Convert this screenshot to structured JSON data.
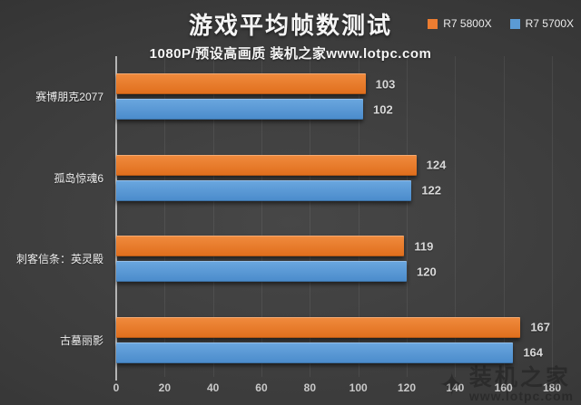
{
  "chart_data": {
    "type": "bar",
    "orientation": "horizontal",
    "title": "游戏平均帧数测试",
    "subtitle": "1080P/预设高画质 装机之家www.lotpc.com",
    "categories": [
      "赛博朋克2077",
      "孤岛惊魂6",
      "刺客信条：英灵殿",
      "古墓丽影"
    ],
    "series": [
      {
        "name": "R7 5800X",
        "color": "#ED7D31",
        "color_light": "#F08B3E",
        "color_dark": "#E06E1C",
        "values": [
          103,
          124,
          119,
          167
        ]
      },
      {
        "name": "R7 5700X",
        "color": "#5B9BD5",
        "color_light": "#6BA7DF",
        "color_dark": "#4A8BCB",
        "values": [
          102,
          122,
          120,
          164
        ]
      }
    ],
    "xlabel": "",
    "ylabel": "",
    "xlim": [
      0,
      180
    ],
    "xticks": [
      0,
      20,
      40,
      60,
      80,
      100,
      120,
      140,
      160,
      180
    ],
    "grid": true,
    "legend_position": "top-right"
  },
  "watermark": {
    "logo_glyph": "✦",
    "logo_text": "装机之家",
    "url_text": "www.lotpc.com"
  },
  "colors": {
    "background_center": "#474747",
    "background_edge": "#2b2b2b",
    "title": "#f5f5f5",
    "category_label": "#efefef",
    "value_label": "#d9d9d9",
    "tick_label": "#c9c9c9",
    "axis_line": "#b5b5b5",
    "gridline": "rgba(255,255,255,0.07)"
  }
}
